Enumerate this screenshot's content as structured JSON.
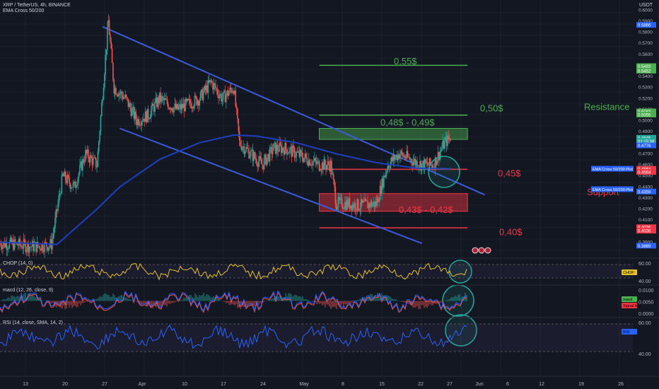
{
  "header": {
    "symbol_line": "XRP / TetherUS, 4h, BINANCE",
    "indicator_line": "EMA Cross 50/200",
    "currency": "USDT"
  },
  "price_axis": {
    "labels": [
      "0.6000",
      "0.5900",
      "0.5800",
      "0.5700",
      "0.5600",
      "0.5500",
      "0.5400",
      "0.5300",
      "0.5200",
      "0.5100",
      "0.5000",
      "0.4900",
      "0.4800",
      "0.4700",
      "0.4600",
      "0.4500",
      "0.4400",
      "0.4300",
      "0.4200",
      "0.4100",
      "0.4000",
      "0.3900"
    ],
    "badges": [
      {
        "text": "0.5866",
        "color": "#2962ff",
        "price": 0.5866
      },
      {
        "text": "0.5493",
        "color": "#4caf50",
        "price": 0.5493
      },
      {
        "text": "0.5452",
        "color": "#4caf50",
        "price": 0.5452
      },
      {
        "text": "0.5083",
        "color": "#4caf50",
        "price": 0.5083
      },
      {
        "text": "0.5055",
        "color": "#4caf50",
        "price": 0.5055
      },
      {
        "text": "0.4845",
        "color": "#26a69a",
        "price": 0.4845
      },
      {
        "text": "01:15:38",
        "color": "#26a69a",
        "price": 0.4816
      },
      {
        "text": "0.4776",
        "color": "#2962ff",
        "price": 0.4776
      },
      {
        "text": "0.4564",
        "color": "#f23645",
        "price": 0.4564
      },
      {
        "text": "0.4564",
        "color": "#f23645",
        "price": 0.4536
      },
      {
        "text": "0.4359",
        "color": "#2962ff",
        "price": 0.4359
      },
      {
        "text": "0.4036",
        "color": "#f23645",
        "price": 0.4036
      },
      {
        "text": "0.4036",
        "color": "#f23645",
        "price": 0.4005
      },
      {
        "text": "0.3869",
        "color": "#2962ff",
        "price": 0.3869
      }
    ],
    "floating_labels": [
      {
        "text": "EMA Cross 50/200:Plot",
        "price": 0.4565,
        "color": "#2962ff"
      },
      {
        "text": "EMA Cross 50/200:Plot",
        "price": 0.438,
        "color": "#2962ff"
      }
    ]
  },
  "time_axis": {
    "labels": [
      "13",
      "20",
      "27",
      "Apr",
      "10",
      "17",
      "24",
      "May",
      "8",
      "15",
      "22",
      "27",
      "Jun",
      "6",
      "12",
      "19",
      "26"
    ]
  },
  "annotations": [
    {
      "text": "0,55$",
      "color": "#4caf50",
      "price": 0.551
    },
    {
      "text": "0,50$",
      "color": "#4caf50",
      "price": 0.5085
    },
    {
      "text": "0,48$ - 0,49$",
      "color": "#4caf50",
      "price": 0.4955
    },
    {
      "text": "Resistance",
      "color": "#4caf50",
      "price": 0.5095
    },
    {
      "text": "0,45$",
      "color": "#f23645",
      "price": 0.4495
    },
    {
      "text": "Support",
      "color": "#f23645",
      "price": 0.4325
    },
    {
      "text": "0,43$ - 0,42$",
      "color": "#f23645",
      "price": 0.4165
    },
    {
      "text": "0,40$",
      "color": "#f23645",
      "price": 0.3965
    }
  ],
  "indicators": {
    "chop": {
      "title": "CHOP (14, 0)",
      "axis": [
        "60.00",
        "40.00"
      ],
      "badge": "CHOP"
    },
    "macd": {
      "title": "macd (12, 26, close, 9)",
      "axis": [
        "0.0100",
        "0.0050",
        "0.0000"
      ],
      "badges": [
        "macd",
        "Signal line"
      ]
    },
    "rsi": {
      "title": "RSI (14, close, SMA, 14, 2)",
      "axis": [
        "60.00",
        "40.00"
      ],
      "badge": "RSI"
    }
  },
  "chart_data": {
    "type": "candlestick",
    "symbol": "XRP / TetherUS",
    "timeframe": "4h",
    "ylim": [
      0.382,
      0.604
    ],
    "x_start": "2023-03-10",
    "x_end": "2023-06-29",
    "last_candle": "2023-05-28",
    "price_path": [
      [
        "2023-03-10",
        0.389
      ],
      [
        "2023-03-13",
        0.388
      ],
      [
        "2023-03-16",
        0.386
      ],
      [
        "2023-03-19",
        0.388
      ],
      [
        "2023-03-21",
        0.45
      ],
      [
        "2023-03-23",
        0.44
      ],
      [
        "2023-03-25",
        0.47
      ],
      [
        "2023-03-27",
        0.46
      ],
      [
        "2023-03-29",
        0.59
      ],
      [
        "2023-03-30",
        0.53
      ],
      [
        "2023-04-01",
        0.52
      ],
      [
        "2023-04-03",
        0.5
      ],
      [
        "2023-04-05",
        0.505
      ],
      [
        "2023-04-07",
        0.52
      ],
      [
        "2023-04-10",
        0.51
      ],
      [
        "2023-04-12",
        0.515
      ],
      [
        "2023-04-14",
        0.52
      ],
      [
        "2023-04-16",
        0.535
      ],
      [
        "2023-04-18",
        0.52
      ],
      [
        "2023-04-20",
        0.53
      ],
      [
        "2023-04-21",
        0.48
      ],
      [
        "2023-04-23",
        0.47
      ],
      [
        "2023-04-25",
        0.46
      ],
      [
        "2023-04-27",
        0.475
      ],
      [
        "2023-04-29",
        0.475
      ],
      [
        "2023-05-01",
        0.47
      ],
      [
        "2023-05-03",
        0.465
      ],
      [
        "2023-05-05",
        0.46
      ],
      [
        "2023-05-07",
        0.46
      ],
      [
        "2023-05-08",
        0.425
      ],
      [
        "2023-05-10",
        0.425
      ],
      [
        "2023-05-12",
        0.423
      ],
      [
        "2023-05-15",
        0.425
      ],
      [
        "2023-05-17",
        0.46
      ],
      [
        "2023-05-19",
        0.47
      ],
      [
        "2023-05-21",
        0.465
      ],
      [
        "2023-05-23",
        0.46
      ],
      [
        "2023-05-25",
        0.46
      ],
      [
        "2023-05-27",
        0.48
      ],
      [
        "2023-05-28",
        0.4845
      ]
    ],
    "ema_path": [
      [
        "2023-03-10",
        0.39
      ],
      [
        "2023-03-20",
        0.388
      ],
      [
        "2023-03-27",
        0.42
      ],
      [
        "2023-03-31",
        0.44
      ],
      [
        "2023-04-07",
        0.465
      ],
      [
        "2023-04-14",
        0.48
      ],
      [
        "2023-04-20",
        0.487
      ],
      [
        "2023-04-24",
        0.486
      ],
      [
        "2023-05-01",
        0.48
      ],
      [
        "2023-05-08",
        0.47
      ],
      [
        "2023-05-15",
        0.462
      ],
      [
        "2023-05-22",
        0.457
      ],
      [
        "2023-05-28",
        0.4565
      ]
    ],
    "horizontal_levels": [
      {
        "price": 0.55,
        "color": "#4caf50",
        "from": "2023-05-05",
        "to": "2023-05-31"
      },
      {
        "price": 0.505,
        "color": "#4caf50",
        "from": "2023-05-05",
        "to": "2023-05-31"
      },
      {
        "price": 0.456,
        "color": "#f23645",
        "from": "2023-05-05",
        "to": "2023-05-31"
      },
      {
        "price": 0.403,
        "color": "#f23645",
        "from": "2023-05-05",
        "to": "2023-05-31"
      }
    ],
    "zones": [
      {
        "label": "0,48$ - 0,49$",
        "from_price": 0.483,
        "to_price": 0.493,
        "color": "#4caf50"
      },
      {
        "label": "0,43$ - 0,42$",
        "from_price": 0.418,
        "to_price": 0.434,
        "color": "#f23645"
      }
    ],
    "trendlines": [
      {
        "from": [
          "2023-03-28",
          0.585
        ],
        "to": [
          "2023-06-03",
          0.433
        ],
        "color": "#3b5bdb"
      },
      {
        "from": [
          "2023-03-31",
          0.493
        ],
        "to": [
          "2023-05-23",
          0.389
        ],
        "color": "#3b5bdb"
      }
    ]
  }
}
